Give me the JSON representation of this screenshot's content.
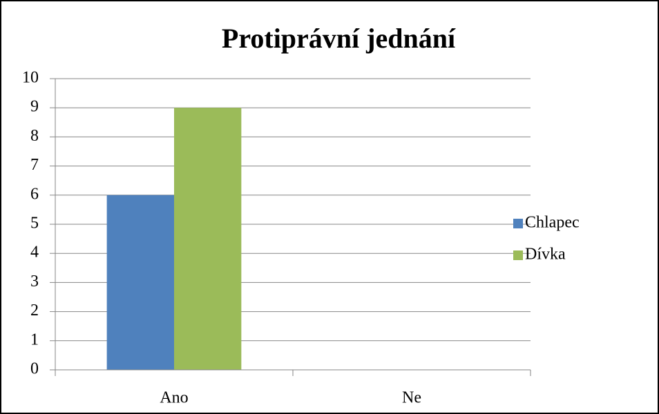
{
  "chart_data": {
    "type": "bar",
    "title": "Protiprávní jednání",
    "categories": [
      "Ano",
      "Ne"
    ],
    "series": [
      {
        "name": "Chlapec",
        "color": "#4f81bd",
        "values": [
          6,
          0
        ]
      },
      {
        "name": "Dívka",
        "color": "#9bbb59",
        "values": [
          9,
          0
        ]
      }
    ],
    "ylim": [
      0,
      10
    ],
    "yticks": [
      0,
      1,
      2,
      3,
      4,
      5,
      6,
      7,
      8,
      9,
      10
    ],
    "grid": true,
    "legend": "right"
  }
}
